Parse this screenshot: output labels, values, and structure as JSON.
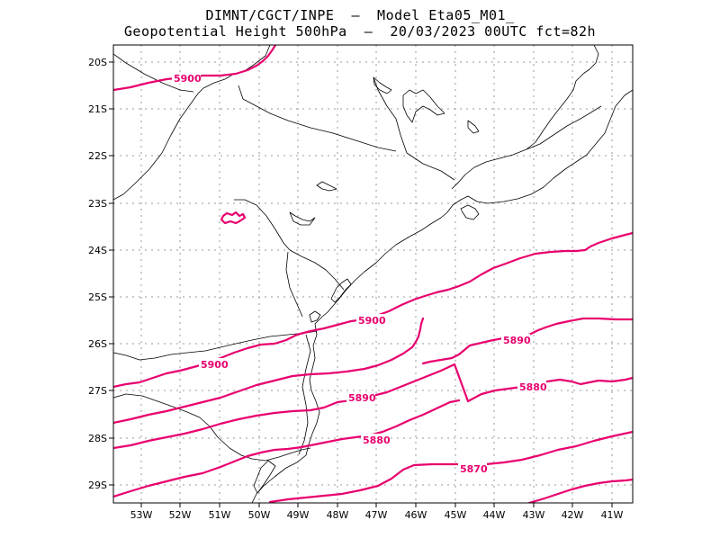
{
  "title": {
    "line1": "DIMNT/CGCT/INPE  –  Model Eta05_M01_",
    "line2": "Geopotential Height 500hPa  –  20/03/2023 00UTC fct=82h"
  },
  "map": {
    "lon_range": [
      -53.6,
      -40.6
    ],
    "lat_range": [
      -29.4,
      -19.8
    ],
    "x_tick_labels": [
      "53W",
      "52W",
      "51W",
      "50W",
      "49W",
      "48W",
      "47W",
      "46W",
      "45W",
      "44W",
      "43W",
      "42W",
      "41W"
    ],
    "y_tick_labels": [
      "20S",
      "21S",
      "22S",
      "23S",
      "24S",
      "25S",
      "26S",
      "27S",
      "28S",
      "29S"
    ],
    "contour_color": "#e8006e",
    "coast_color": "#000000",
    "grid_color": "#9a9a9a"
  },
  "contours": [
    {
      "value": 5900,
      "label": "5900"
    },
    {
      "value": 5900,
      "label": "5900"
    },
    {
      "value": 5900,
      "label": "5900"
    },
    {
      "value": 5890,
      "label": "5890"
    },
    {
      "value": 5890,
      "label": "5890"
    },
    {
      "value": 5880,
      "label": "5880"
    },
    {
      "value": 5880,
      "label": "5880"
    },
    {
      "value": 5870,
      "label": "5870"
    }
  ]
}
